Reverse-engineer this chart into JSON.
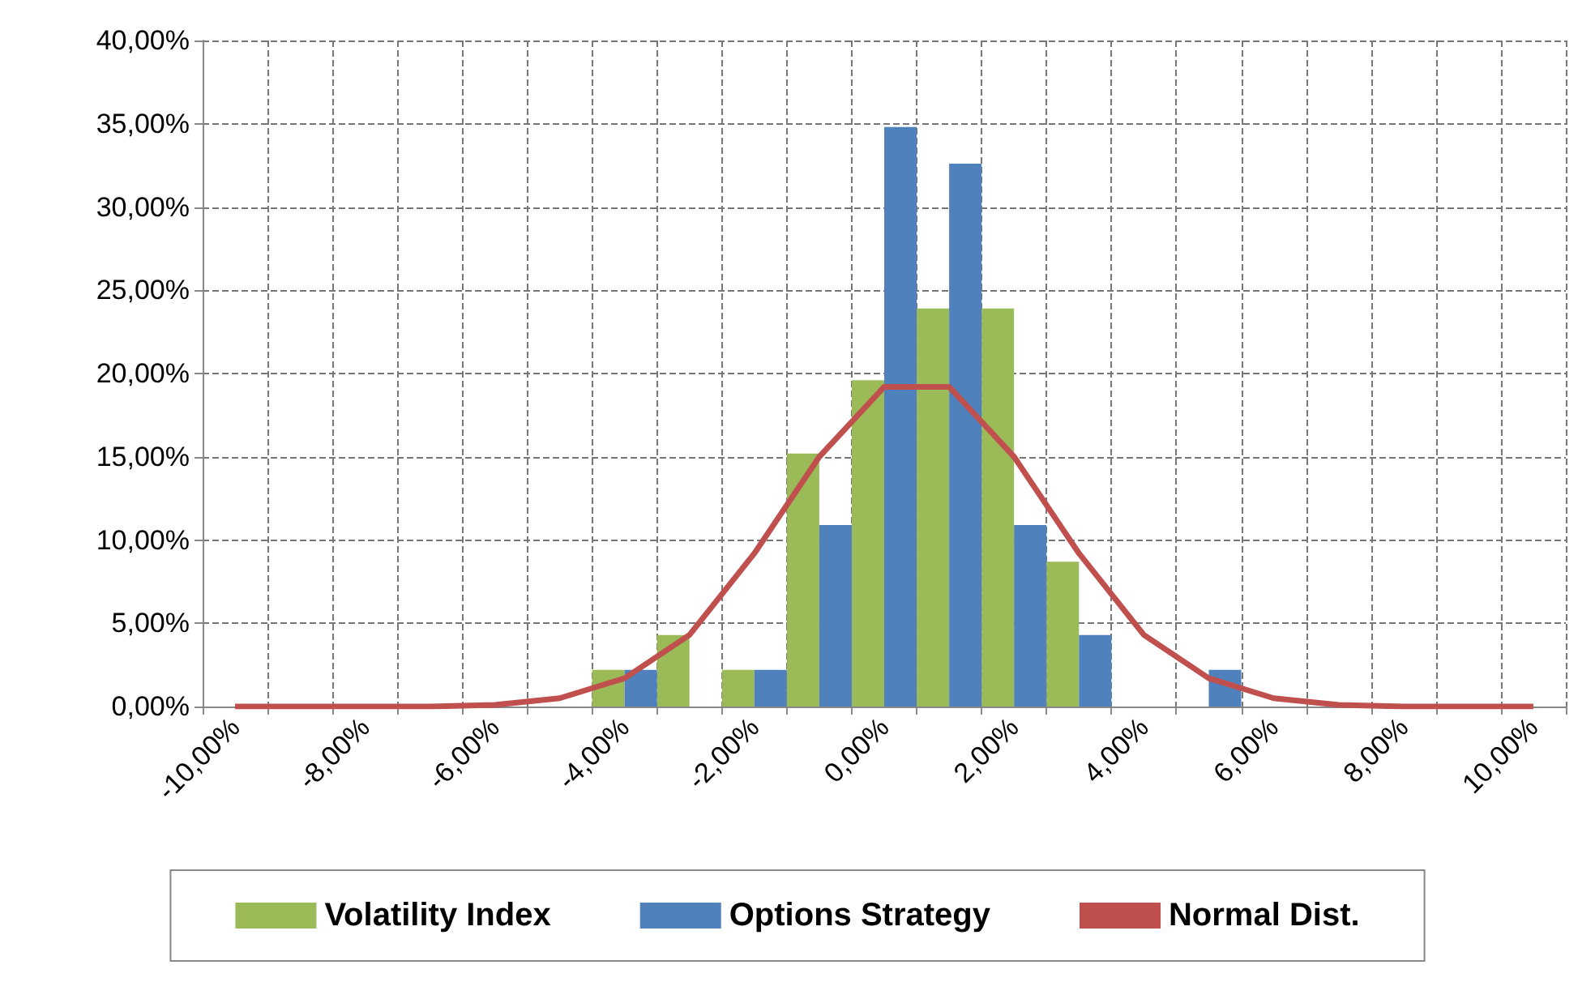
{
  "chart_data": {
    "type": "bar",
    "categories": [
      "-10,00%",
      null,
      "-8,00%",
      null,
      "-6,00%",
      null,
      "-4,00%",
      null,
      "-2,00%",
      null,
      "0,00%",
      null,
      "2,00%",
      null,
      "4,00%",
      null,
      "6,00%",
      null,
      "8,00%",
      null,
      "10,00%"
    ],
    "series": [
      {
        "name": "Volatility Index",
        "color": "#9bbb59",
        "values": [
          0,
          0,
          0,
          0,
          0,
          0,
          2.2,
          4.3,
          2.2,
          15.2,
          19.6,
          23.9,
          23.9,
          8.7,
          0,
          0,
          0,
          0,
          0,
          0,
          0
        ]
      },
      {
        "name": "Options Strategy",
        "color": "#4f81bd",
        "values": [
          0,
          0,
          0,
          0,
          0,
          0,
          2.2,
          0,
          2.2,
          10.9,
          34.8,
          32.6,
          10.9,
          4.3,
          0,
          2.2,
          0,
          0,
          0,
          0,
          0
        ]
      },
      {
        "name": "Normal Dist.",
        "type": "line",
        "color": "#c0504d",
        "marker": "none",
        "values": [
          0,
          0,
          0,
          0,
          0.1,
          0.5,
          1.7,
          4.3,
          9.2,
          15,
          19.2,
          19.2,
          15,
          9.2,
          4.3,
          1.7,
          0.5,
          0.1,
          0,
          0,
          0
        ]
      }
    ],
    "ylim": [
      0,
      40
    ],
    "yticks": [
      {
        "value": 0,
        "label": "0,00%"
      },
      {
        "value": 5,
        "label": "5,00%"
      },
      {
        "value": 10,
        "label": "10,00%"
      },
      {
        "value": 15,
        "label": "15,00%"
      },
      {
        "value": 20,
        "label": "20,00%"
      },
      {
        "value": 25,
        "label": "25,00%"
      },
      {
        "value": 30,
        "label": "30,00%"
      },
      {
        "value": 35,
        "label": "35,00%"
      },
      {
        "value": 40,
        "label": "40,00%"
      }
    ],
    "grid": true,
    "legend": "bottom"
  }
}
